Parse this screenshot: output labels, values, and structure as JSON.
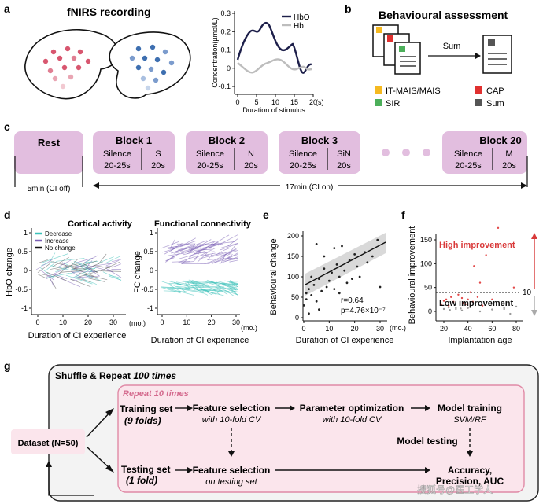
{
  "panels": {
    "a": "a",
    "b": "b",
    "c": "c",
    "d": "d",
    "e": "e",
    "f": "f",
    "g": "g"
  },
  "a": {
    "title": "fNIRS recording",
    "chart": {
      "ylabel": "Concentration(µmol/L)",
      "xlabel": "Duration of stimulus",
      "yticks": [
        "0.3",
        "0.2",
        "0.1",
        "0",
        "-0.1"
      ],
      "xticks": [
        "0",
        "5",
        "10",
        "15",
        "20"
      ],
      "xunit": "(s)",
      "legend": [
        "HbO",
        "Hb"
      ]
    }
  },
  "b": {
    "title": "Behavioural assessment",
    "sum_label": "Sum",
    "legend": [
      {
        "label": "IT-MAIS/MAIS",
        "color": "#f5b920"
      },
      {
        "label": "CAP",
        "color": "#e0302f"
      },
      {
        "label": "SIR",
        "color": "#4caf5a"
      },
      {
        "label": "Sum",
        "color": "#555555"
      }
    ]
  },
  "c": {
    "rest": {
      "label": "Rest",
      "caption": "5min (CI off)"
    },
    "blocks": [
      {
        "label": "Block 1",
        "left": "Silence",
        "left_time": "20-25s",
        "right": "S",
        "right_time": "20s"
      },
      {
        "label": "Block 2",
        "left": "Silence",
        "left_time": "20-25s",
        "right": "N",
        "right_time": "20s"
      },
      {
        "label": "Block 3",
        "left": "Silence",
        "left_time": "20-25s",
        "right": "SiN",
        "right_time": "20s"
      },
      {
        "label": "Block 20",
        "left": "Silence",
        "left_time": "20-25s",
        "right": "M",
        "right_time": "20s"
      }
    ],
    "span_caption": "17min (CI on)"
  },
  "d": {
    "left_title": "Cortical activity",
    "right_title": "Functional connectivity",
    "legend": [
      {
        "label": "Decrease",
        "color": "#3cc1b9"
      },
      {
        "label": "Increase",
        "color": "#7a5fb5"
      },
      {
        "label": "No change",
        "color": "#111111"
      }
    ],
    "left_ylabel": "HbO change",
    "right_ylabel": "FC change",
    "left_yticks": [
      "1",
      "0.5",
      "0",
      "-0.5",
      "-1"
    ],
    "right_yticks": [
      "1",
      "0.5",
      "0",
      "-0.5",
      "-1"
    ],
    "xticks": [
      "0",
      "10",
      "20",
      "30"
    ],
    "xunit": "(mo.)",
    "xlabel": "Duration of CI experience"
  },
  "e": {
    "ylabel": "Behavioural change",
    "yticks": [
      "200",
      "150",
      "100",
      "50",
      "0"
    ],
    "xticks": [
      "0",
      "10",
      "20",
      "30"
    ],
    "xunit": "(mo.)",
    "xlabel": "Duration of CI experience",
    "r_text": "r=0.64",
    "p_text": "p=4.76×10⁻⁷"
  },
  "f": {
    "ylabel": "Behavioural improvement",
    "yticks": [
      "150",
      "100",
      "50",
      "0"
    ],
    "xticks": [
      "20",
      "40",
      "60",
      "80"
    ],
    "xlabel": "Implantation age",
    "threshold": "10",
    "high": "High improvement",
    "low": "Low improvement"
  },
  "g": {
    "outer_title_prefix": "Shuffle & Repeat ",
    "outer_title_em": "100 times",
    "inner_title": "Repeat 10 times",
    "dataset": "Dataset (N=50)",
    "training": "Training set",
    "training_sub": "(9 folds)",
    "testing": "Testing set",
    "testing_sub": "(1 fold)",
    "fs1": "Feature selection",
    "fs1_sub": "with 10-fold CV",
    "fs2": "Feature selection",
    "fs2_sub": "on testing set",
    "po": "Parameter optimization",
    "po_sub": "with 10-fold CV",
    "mt": "Model training",
    "mt_sub": "SVM/RF",
    "mtest": "Model testing",
    "acc": "Accuracy,",
    "acc2": "Precision, AUC",
    "watermark": "搜狐号@医工学人"
  }
}
